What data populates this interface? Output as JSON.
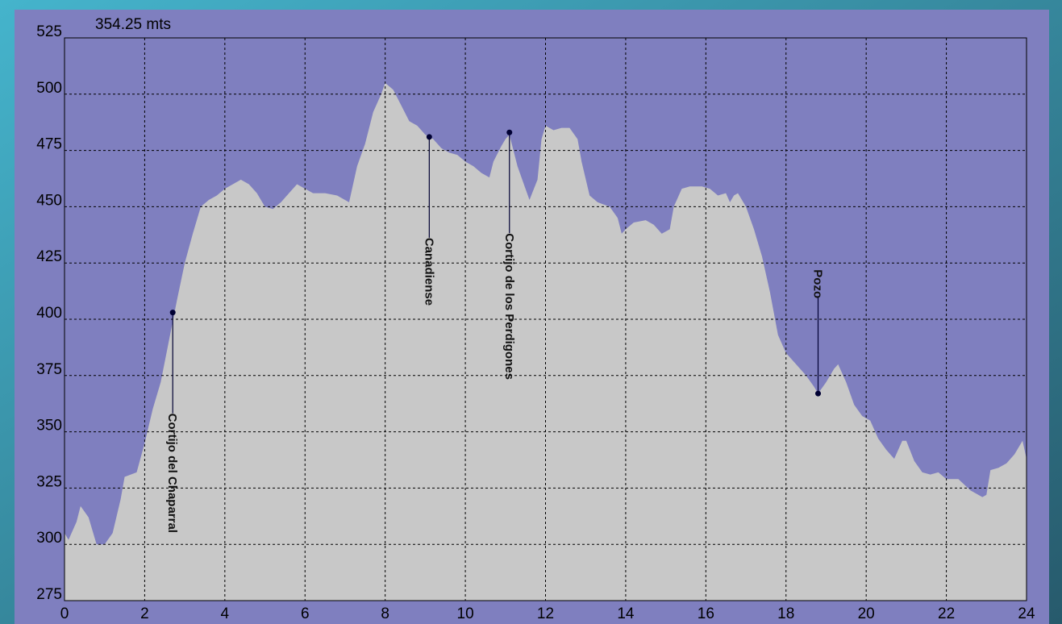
{
  "chart_data": {
    "type": "area",
    "title": "354.25 mts",
    "x": [
      0,
      0.1,
      0.3,
      0.4,
      0.6,
      0.7,
      0.8,
      1.0,
      1.2,
      1.4,
      1.5,
      1.8,
      2.0,
      2.2,
      2.4,
      2.6,
      2.8,
      3.0,
      3.2,
      3.4,
      3.6,
      3.8,
      4.0,
      4.2,
      4.4,
      4.6,
      4.8,
      5.0,
      5.2,
      5.4,
      5.6,
      5.8,
      6.0,
      6.2,
      6.5,
      6.8,
      7.1,
      7.3,
      7.5,
      7.7,
      7.9,
      8.0,
      8.2,
      8.4,
      8.6,
      8.8,
      9.0,
      9.2,
      9.4,
      9.6,
      9.8,
      10.0,
      10.2,
      10.4,
      10.6,
      10.7,
      10.9,
      11.0,
      11.1,
      11.3,
      11.5,
      11.6,
      11.8,
      11.9,
      12.0,
      12.2,
      12.4,
      12.6,
      12.8,
      12.9,
      13.1,
      13.3,
      13.6,
      13.8,
      13.9,
      14.0,
      14.2,
      14.5,
      14.7,
      14.9,
      15.1,
      15.2,
      15.4,
      15.6,
      15.9,
      16.1,
      16.3,
      16.5,
      16.6,
      16.7,
      16.8,
      17.0,
      17.2,
      17.4,
      17.6,
      17.8,
      18.0,
      18.2,
      18.5,
      18.7,
      18.8,
      19.0,
      19.2,
      19.3,
      19.5,
      19.7,
      19.9,
      20.1,
      20.3,
      20.5,
      20.7,
      20.9,
      21.0,
      21.2,
      21.4,
      21.6,
      21.8,
      22.0,
      22.3,
      22.6,
      22.9,
      23.0,
      23.1,
      23.3,
      23.5,
      23.7,
      23.9,
      24.0
    ],
    "values": [
      305,
      302,
      310,
      317,
      312,
      306,
      300,
      300,
      305,
      320,
      330,
      332,
      345,
      360,
      372,
      390,
      408,
      425,
      438,
      450,
      453,
      455,
      458,
      460,
      462,
      460,
      456,
      450,
      449,
      452,
      456,
      460,
      458,
      456,
      456,
      455,
      452,
      468,
      478,
      492,
      500,
      505,
      502,
      495,
      488,
      486,
      482,
      480,
      476,
      474,
      473,
      470,
      468,
      465,
      463,
      470,
      477,
      480,
      482,
      468,
      458,
      453,
      462,
      480,
      486,
      484,
      485,
      485,
      480,
      470,
      455,
      452,
      450,
      445,
      438,
      440,
      443,
      444,
      442,
      438,
      440,
      450,
      458,
      459,
      459,
      458,
      455,
      456,
      452,
      455,
      456,
      450,
      440,
      428,
      412,
      393,
      385,
      381,
      375,
      370,
      367,
      372,
      378,
      380,
      372,
      362,
      357,
      355,
      347,
      342,
      338,
      346,
      346,
      337,
      332,
      331,
      332,
      329,
      329,
      324,
      321,
      322,
      333,
      334,
      336,
      340,
      346,
      338
    ],
    "color": "#c8c8c8",
    "background": "#7f7fbf",
    "waypoints": [
      {
        "name": "Cortijo del Chaparral",
        "x": 2.7,
        "value": 403
      },
      {
        "name": "Canadiense",
        "x": 9.1,
        "value": 481
      },
      {
        "name": "Cortijo de los Perdigones",
        "x": 11.1,
        "value": 483
      },
      {
        "name": "Pozo",
        "x": 18.8,
        "value": 367
      }
    ],
    "xlim": [
      0,
      24
    ],
    "xticks": [
      0,
      2,
      4,
      6,
      8,
      10,
      12,
      14,
      16,
      18,
      20,
      22,
      24
    ],
    "ylim": [
      275,
      525
    ],
    "yticks": [
      275,
      300,
      325,
      350,
      375,
      400,
      425,
      450,
      475,
      500,
      525
    ],
    "grid": true
  }
}
